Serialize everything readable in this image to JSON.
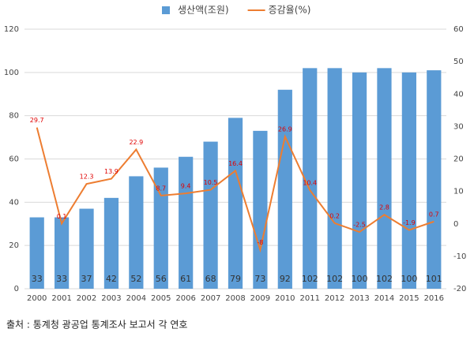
{
  "chart_data": {
    "type": "bar",
    "categories": [
      "2000",
      "2001",
      "2002",
      "2003",
      "2004",
      "2005",
      "2006",
      "2007",
      "2008",
      "2009",
      "2010",
      "2011",
      "2012",
      "2013",
      "2014",
      "2015",
      "2016"
    ],
    "series": [
      {
        "name": "생산액(조원)",
        "color": "#5b9bd5",
        "type": "bar",
        "values": [
          33,
          33,
          37,
          42,
          52,
          56,
          61,
          68,
          79,
          73,
          92,
          102,
          102,
          100,
          102,
          100,
          101
        ]
      },
      {
        "name": "증감율(%)",
        "color": "#ed7d31",
        "type": "line",
        "axis": "y2",
        "values": [
          29.7,
          0.1,
          12.3,
          13.9,
          22.9,
          8.7,
          9.4,
          10.5,
          16.4,
          -8,
          26.9,
          10.4,
          0.2,
          -2.5,
          2.8,
          -1.9,
          0.7
        ]
      }
    ],
    "ylim": [
      0,
      120
    ],
    "yticks": [
      0,
      20,
      40,
      60,
      80,
      100,
      120
    ],
    "y2lim": [
      -20,
      60
    ],
    "y2ticks": [
      -20,
      -10,
      0,
      10,
      20,
      30,
      40,
      50,
      60
    ],
    "grid": true,
    "legend": "top",
    "source": "출처 : 통계청 광공업 통계조사 보고서 각 연호"
  }
}
